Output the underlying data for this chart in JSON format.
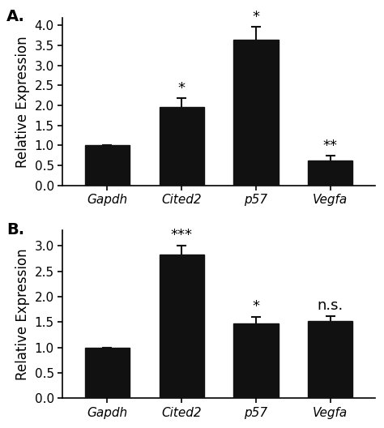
{
  "panel_A": {
    "categories": [
      "Gapdh",
      "Cited2",
      "p57",
      "Vegfa"
    ],
    "values": [
      1.0,
      1.97,
      3.65,
      0.62
    ],
    "errors": [
      0.0,
      0.22,
      0.32,
      0.12
    ],
    "significance": [
      "",
      "*",
      "*",
      "**"
    ],
    "ylim": [
      0,
      4.2
    ],
    "yticks": [
      0.0,
      0.5,
      1.0,
      1.5,
      2.0,
      2.5,
      3.0,
      3.5,
      4.0
    ],
    "ylabel": "Relative Expression",
    "panel_label": "A."
  },
  "panel_B": {
    "categories": [
      "Gapdh",
      "Cited2",
      "p57",
      "Vegfa"
    ],
    "values": [
      1.0,
      2.83,
      1.47,
      1.52
    ],
    "errors": [
      0.0,
      0.17,
      0.13,
      0.1
    ],
    "significance": [
      "",
      "***",
      "*",
      "n.s."
    ],
    "ylim": [
      0,
      3.3
    ],
    "yticks": [
      0.0,
      0.5,
      1.0,
      1.5,
      2.0,
      2.5,
      3.0
    ],
    "ylabel": "Relative Expression",
    "panel_label": "B."
  },
  "bar_color": "#111111",
  "bar_width": 0.6,
  "error_color": "#111111",
  "tick_fontsize": 11,
  "label_fontsize": 12,
  "sig_fontsize": 13,
  "panel_label_fontsize": 14,
  "italic_labels": true
}
